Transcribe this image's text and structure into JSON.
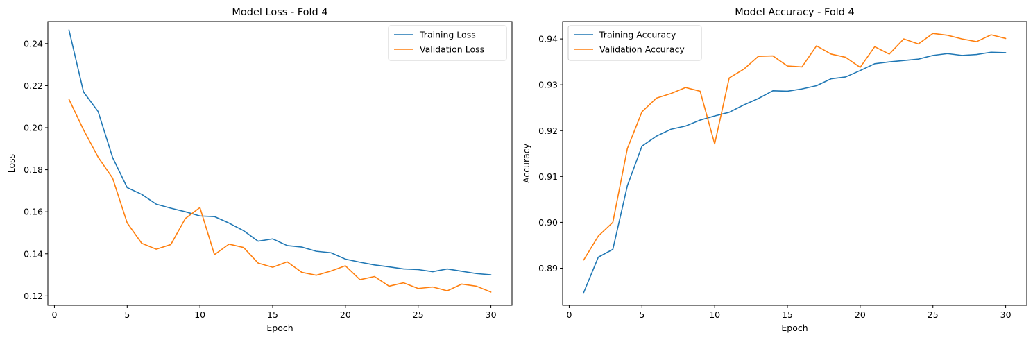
{
  "chart_data": [
    {
      "type": "line",
      "title": "Model Loss - Fold 4",
      "xlabel": "Epoch",
      "ylabel": "Loss",
      "xlim": [
        -0.45,
        31.45
      ],
      "ylim": [
        0.1155,
        0.2505
      ],
      "xticks": [
        0,
        5,
        10,
        15,
        20,
        25,
        30
      ],
      "yticks": [
        0.12,
        0.14,
        0.16,
        0.18,
        0.2,
        0.22,
        0.24
      ],
      "ytick_labels": [
        "0.12",
        "0.14",
        "0.16",
        "0.18",
        "0.20",
        "0.22",
        "0.24"
      ],
      "grid": false,
      "legend_position": "top-right",
      "x": [
        1,
        2,
        3,
        4,
        5,
        6,
        7,
        8,
        9,
        10,
        11,
        12,
        13,
        14,
        15,
        16,
        17,
        18,
        19,
        20,
        21,
        22,
        23,
        24,
        25,
        26,
        27,
        28,
        29,
        30
      ],
      "series": [
        {
          "name": "Training Loss",
          "color": "#1f77b4",
          "values": [
            0.2465,
            0.217,
            0.2077,
            0.1858,
            0.1715,
            0.1683,
            0.1636,
            0.1617,
            0.16,
            0.158,
            0.1577,
            0.1546,
            0.151,
            0.146,
            0.1471,
            0.1439,
            0.1432,
            0.1412,
            0.1405,
            0.1375,
            0.136,
            0.1347,
            0.1338,
            0.1328,
            0.1325,
            0.1315,
            0.1328,
            0.1317,
            0.1306,
            0.13
          ]
        },
        {
          "name": "Validation Loss",
          "color": "#ff7f0e",
          "values": [
            0.2135,
            0.199,
            0.186,
            0.176,
            0.1547,
            0.145,
            0.1422,
            0.1444,
            0.1568,
            0.162,
            0.1396,
            0.1446,
            0.143,
            0.1356,
            0.1336,
            0.1362,
            0.1312,
            0.1298,
            0.1318,
            0.1343,
            0.1277,
            0.1292,
            0.1246,
            0.1262,
            0.1235,
            0.1242,
            0.1224,
            0.1256,
            0.1246,
            0.1218
          ]
        }
      ]
    },
    {
      "type": "line",
      "title": "Model Accuracy - Fold 4",
      "xlabel": "Epoch",
      "ylabel": "Accuracy",
      "xlim": [
        -0.45,
        31.45
      ],
      "ylim": [
        0.8819,
        0.9438
      ],
      "xticks": [
        0,
        5,
        10,
        15,
        20,
        25,
        30
      ],
      "yticks": [
        0.89,
        0.9,
        0.91,
        0.92,
        0.93,
        0.94
      ],
      "ytick_labels": [
        "0.89",
        "0.90",
        "0.91",
        "0.92",
        "0.93",
        "0.94"
      ],
      "grid": false,
      "legend_position": "top-left",
      "x": [
        1,
        2,
        3,
        4,
        5,
        6,
        7,
        8,
        9,
        10,
        11,
        12,
        13,
        14,
        15,
        16,
        17,
        18,
        19,
        20,
        21,
        22,
        23,
        24,
        25,
        26,
        27,
        28,
        29,
        30
      ],
      "series": [
        {
          "name": "Training Accuracy",
          "color": "#1f77b4",
          "values": [
            0.8847,
            0.8924,
            0.8941,
            0.908,
            0.9166,
            0.9188,
            0.9203,
            0.921,
            0.9223,
            0.9232,
            0.924,
            0.9256,
            0.927,
            0.9287,
            0.9286,
            0.9291,
            0.9298,
            0.9313,
            0.9317,
            0.9331,
            0.9346,
            0.935,
            0.9353,
            0.9356,
            0.9364,
            0.9368,
            0.9364,
            0.9366,
            0.9371,
            0.937
          ]
        },
        {
          "name": "Validation Accuracy",
          "color": "#ff7f0e",
          "values": [
            0.8918,
            0.897,
            0.9,
            0.9161,
            0.9241,
            0.9271,
            0.9281,
            0.9294,
            0.9286,
            0.9171,
            0.9315,
            0.9334,
            0.9362,
            0.9363,
            0.9341,
            0.9339,
            0.9385,
            0.9367,
            0.936,
            0.9338,
            0.9383,
            0.9367,
            0.94,
            0.9389,
            0.9412,
            0.9408,
            0.94,
            0.9394,
            0.9409,
            0.9401
          ]
        }
      ]
    }
  ]
}
